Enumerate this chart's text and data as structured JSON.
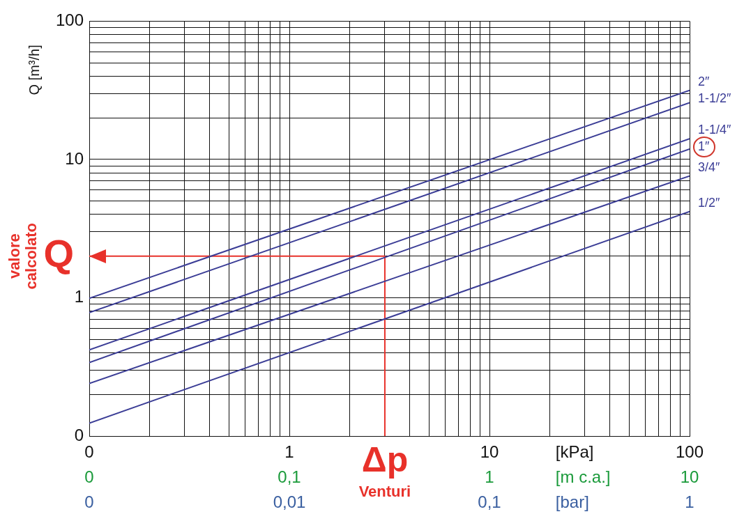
{
  "chart_data": {
    "type": "line",
    "ylabel": "Q [m³/h]",
    "log": "xy",
    "grid": true,
    "legend": false,
    "marker": "none",
    "line_style": "solid",
    "xlim": [
      0.1,
      100
    ],
    "ylim": [
      0.1,
      100
    ],
    "xticks": [
      {
        "value": 0.1,
        "label": "0"
      },
      {
        "value": 0.2,
        "label": null
      },
      {
        "value": 0.3,
        "label": null
      },
      {
        "value": 0.4,
        "label": null
      },
      {
        "value": 0.5,
        "label": null
      },
      {
        "value": 0.6,
        "label": null
      },
      {
        "value": 0.7,
        "label": null
      },
      {
        "value": 0.8,
        "label": null
      },
      {
        "value": 0.9,
        "label": null
      },
      1,
      {
        "value": 2,
        "label": null
      },
      {
        "value": 3,
        "label": null
      },
      {
        "value": 4,
        "label": null
      },
      {
        "value": 5,
        "label": null
      },
      {
        "value": 6,
        "label": null
      },
      {
        "value": 7,
        "label": null
      },
      {
        "value": 8,
        "label": null
      },
      {
        "value": 9,
        "label": null
      },
      10,
      {
        "value": 20,
        "label": null
      },
      {
        "value": 30,
        "label": null
      },
      {
        "value": 40,
        "label": null
      },
      {
        "value": 50,
        "label": null
      },
      {
        "value": 60,
        "label": null
      },
      {
        "value": 70,
        "label": null
      },
      {
        "value": 80,
        "label": null
      },
      {
        "value": 90,
        "label": null
      },
      100
    ],
    "yticks": [
      {
        "value": 0.1,
        "label": "0"
      },
      {
        "value": 0.2,
        "label": null
      },
      {
        "value": 0.3,
        "label": null
      },
      {
        "value": 0.4,
        "label": null
      },
      {
        "value": 0.5,
        "label": null
      },
      {
        "value": 0.6,
        "label": null
      },
      {
        "value": 0.7,
        "label": null
      },
      {
        "value": 0.8,
        "label": null
      },
      {
        "value": 0.9,
        "label": null
      },
      1,
      {
        "value": 2,
        "label": null
      },
      {
        "value": 3,
        "label": null
      },
      {
        "value": 4,
        "label": null
      },
      {
        "value": 5,
        "label": null
      },
      {
        "value": 6,
        "label": null
      },
      {
        "value": 7,
        "label": null
      },
      {
        "value": 8,
        "label": null
      },
      {
        "value": 9,
        "label": null
      },
      10,
      {
        "value": 20,
        "label": null
      },
      {
        "value": 30,
        "label": null
      },
      {
        "value": 40,
        "label": null
      },
      {
        "value": 50,
        "label": null
      },
      {
        "value": 60,
        "label": null
      },
      {
        "value": 70,
        "label": null
      },
      {
        "value": 80,
        "label": null
      },
      {
        "value": 90,
        "label": null
      },
      100
    ],
    "series": [
      {
        "name": "2″",
        "color": "#3b3d96",
        "x": [
          0.1,
          100
        ],
        "values": [
          0.99,
          31.6
        ]
      },
      {
        "name": "1-1/2″",
        "color": "#3b3d96",
        "x": [
          0.1,
          100
        ],
        "values": [
          0.78,
          25.7
        ]
      },
      {
        "name": "1-1/4″",
        "color": "#3b3d96",
        "x": [
          0.1,
          100
        ],
        "values": [
          0.42,
          14.1
        ]
      },
      {
        "name": "1″",
        "color": "#3b3d96",
        "x": [
          0.1,
          100
        ],
        "values": [
          0.34,
          11.9
        ]
      },
      {
        "name": "3/4″",
        "color": "#3b3d96",
        "x": [
          0.1,
          100
        ],
        "values": [
          0.24,
          7.6
        ]
      },
      {
        "name": "1/2″",
        "color": "#3b3d96",
        "x": [
          0.1,
          100
        ],
        "values": [
          0.124,
          4.2
        ]
      },
      {
        "color": "#e8312a",
        "x": [
          3,
          3,
          0.1
        ],
        "values": [
          0.1,
          2,
          2
        ]
      }
    ],
    "annotations": [
      {
        "text": "Q",
        "x": 0.1,
        "y": 2
      },
      "valore calcolato",
      "Δp",
      "Venturi",
      "[kPa]",
      "0",
      "0,1",
      "1",
      "[m c.a.]",
      "10",
      "0",
      "0,01",
      "0,1",
      "[bar]",
      "1"
    ]
  }
}
